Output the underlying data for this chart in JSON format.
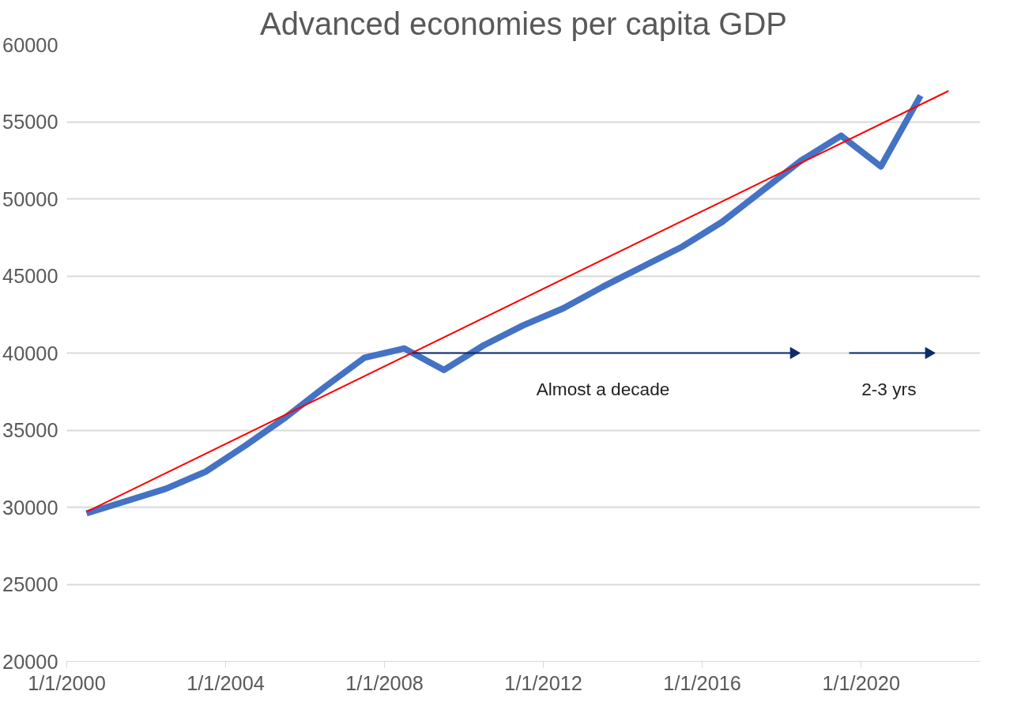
{
  "chart_data": {
    "type": "line",
    "title": "Advanced economies per capita GDP",
    "x": [
      "2000-07-01",
      "2001-07-01",
      "2002-07-01",
      "2003-07-01",
      "2004-07-01",
      "2005-07-01",
      "2006-07-01",
      "2007-07-01",
      "2008-07-01",
      "2009-07-01",
      "2010-07-01",
      "2011-07-01",
      "2012-07-01",
      "2013-07-01",
      "2014-07-01",
      "2015-07-01",
      "2016-07-01",
      "2017-07-01",
      "2018-07-01",
      "2019-07-01",
      "2020-07-01",
      "2021-07-01"
    ],
    "series": [
      {
        "color": "#4472c4",
        "values": [
          29600,
          30400,
          31200,
          32300,
          34000,
          35800,
          37800,
          39700,
          40300,
          38900,
          40500,
          41800,
          42900,
          44300,
          45600,
          46900,
          48500,
          50500,
          52500,
          54100,
          52100,
          56700
        ]
      },
      {
        "type": "line",
        "color": "#ff0000",
        "x": [
          "2000-07-01",
          "2022-03-15"
        ],
        "values": [
          29700,
          57000
        ]
      },
      {
        "type": "line",
        "color": "#0d2a6b",
        "x": [
          "2008-09-13",
          "2018-04-20"
        ],
        "values": [
          40000,
          40000
        ]
      },
      {
        "type": "line",
        "color": "#0d2a6b",
        "x": [
          "2019-09-13",
          "2021-09-13"
        ],
        "values": [
          40000,
          40000
        ]
      }
    ],
    "annotations": [
      "Almost a decade",
      "2-3 yrs"
    ],
    "xlim": [
      "2000-01-01",
      "2023-01-01"
    ],
    "xticks": [
      {
        "value": "2000-01-01",
        "label": "1/1/2000"
      },
      {
        "value": "2004-01-01",
        "label": "1/1/2004"
      },
      {
        "value": "2008-01-01",
        "label": "1/1/2008"
      },
      {
        "value": "2012-01-01",
        "label": "1/1/2012"
      },
      {
        "value": "2016-01-01",
        "label": "1/1/2016"
      },
      {
        "value": "2020-01-01",
        "label": "1/1/2020"
      }
    ],
    "ylim": [
      20000,
      60000
    ],
    "yticks": [
      20000,
      25000,
      30000,
      35000,
      40000,
      45000,
      50000,
      55000,
      60000
    ],
    "grid": "y"
  }
}
